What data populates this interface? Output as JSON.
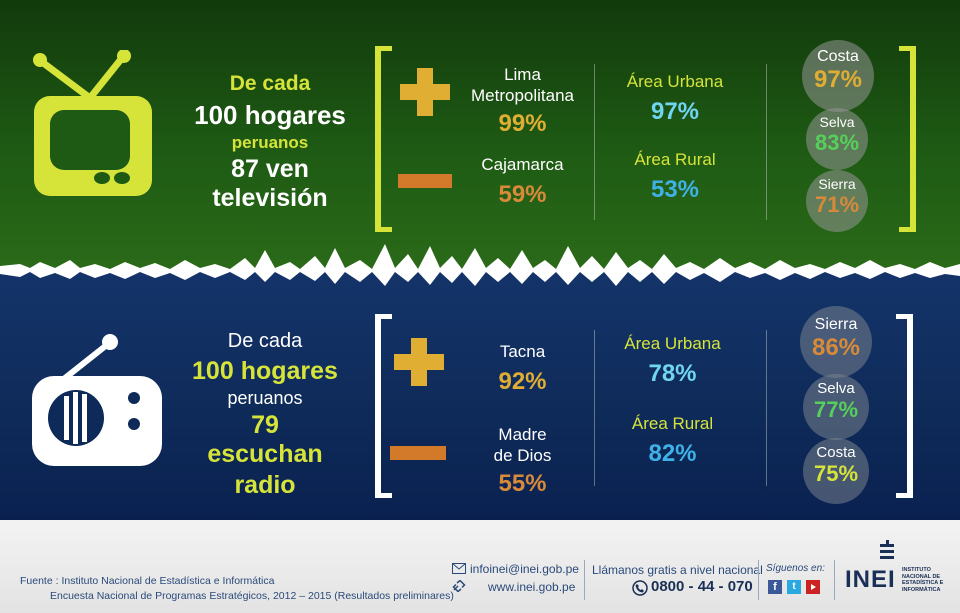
{
  "tv": {
    "line1": "De cada",
    "line2": "100 hogares",
    "line3": "peruanos",
    "line4": "87 ven televisión",
    "plus": {
      "label": "Lima\nMetropolitana",
      "value": "99%"
    },
    "minus": {
      "label": "Cajamarca",
      "value": "59%"
    },
    "urban": {
      "label": "Área Urbana",
      "value": "97%"
    },
    "rural": {
      "label": "Área Rural",
      "value": "53%"
    },
    "regions": [
      {
        "label": "Costa",
        "value": "97%"
      },
      {
        "label": "Selva",
        "value": "83%"
      },
      {
        "label": "Sierra",
        "value": "71%"
      }
    ]
  },
  "radio": {
    "line1": "De cada",
    "line2": "100 hogares",
    "line3": "peruanos",
    "line4": "79 escuchan",
    "line5": "radio",
    "plus": {
      "label": "Tacna",
      "value": "92%"
    },
    "minus": {
      "label": "Madre\nde Dios",
      "value": "55%"
    },
    "urban": {
      "label": "Área Urbana",
      "value": "78%"
    },
    "rural": {
      "label": "Área Rural",
      "value": "82%"
    },
    "regions": [
      {
        "label": "Sierra",
        "value": "86%"
      },
      {
        "label": "Selva",
        "value": "77%"
      },
      {
        "label": "Costa",
        "value": "75%"
      }
    ]
  },
  "footer": {
    "source1": "Fuente : Instituto Nacional de Estadística e Informática",
    "source2": "Encuesta Nacional de Programas Estratégicos, 2012 – 2015 (Resultados preliminares)",
    "email": "infoinei@inei.gob.pe",
    "web": "www.inei.gob.pe",
    "call_label": "Llámanos gratis a nivel nacional",
    "phone": "0800 - 44 - 070",
    "follow": "Síguenos en:",
    "brand": "INEI",
    "brand_sub1": "INSTITUTO",
    "brand_sub2": "NACIONAL DE",
    "brand_sub3": "ESTADÍSTICA E",
    "brand_sub4": "INFORMÁTICA"
  },
  "colors": {
    "accent": "#d6e43a",
    "plus": "#dfae33",
    "minus": "#d27a2a"
  }
}
